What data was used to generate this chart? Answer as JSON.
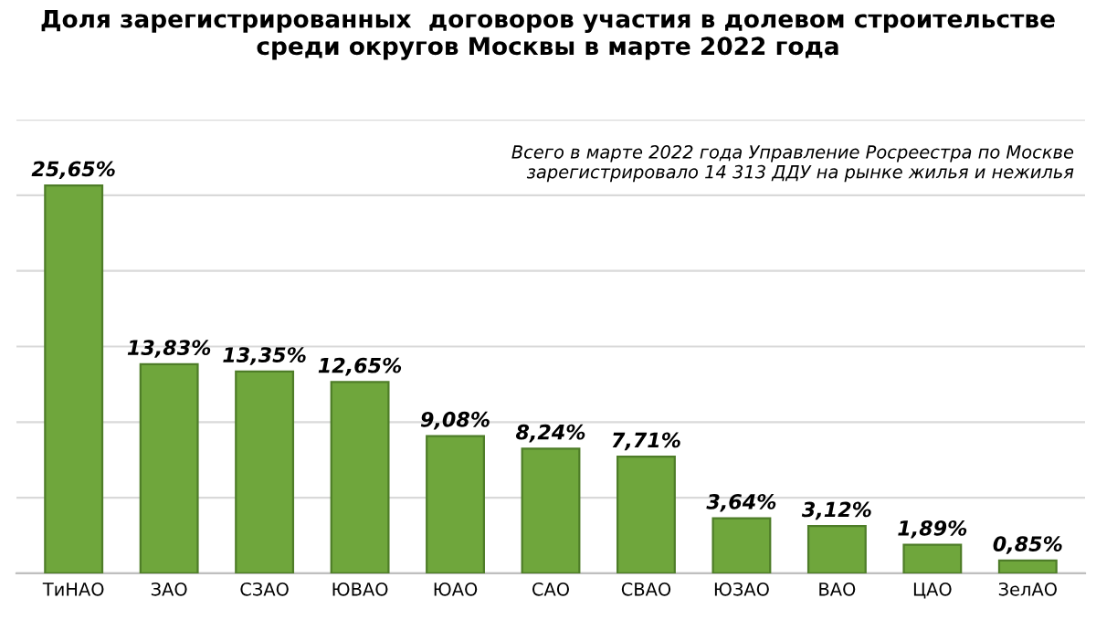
{
  "chart_data": {
    "type": "bar",
    "title": "Доля зарегистрированных  договоров участия в долевом строительстве\nсреди округов Москвы в марте 2022 года",
    "categories": [
      "ТиНАО",
      "ЗАО",
      "СЗАО",
      "ЮВАО",
      "ЮАО",
      "САО",
      "СВАО",
      "ЮЗАО",
      "ВАО",
      "ЦАО",
      "ЗелАО"
    ],
    "values": [
      25.65,
      13.83,
      13.35,
      12.65,
      9.08,
      8.24,
      7.71,
      3.64,
      3.12,
      1.89,
      0.85
    ],
    "value_labels": [
      "25,65%",
      "13,83%",
      "13,35%",
      "12,65%",
      "9,08%",
      "8,24%",
      "7,71%",
      "3,64%",
      "3,12%",
      "1,89%",
      "0,85%"
    ],
    "color": "#6fa63c",
    "ylim": [
      0,
      30
    ],
    "yticks": [
      {
        "value": 0,
        "label": null
      },
      {
        "value": 5,
        "label": null
      },
      {
        "value": 10,
        "label": null
      },
      {
        "value": 15,
        "label": null
      },
      {
        "value": 20,
        "label": null
      },
      {
        "value": 25,
        "label": null
      },
      {
        "value": 30,
        "label": null
      }
    ],
    "tick_labels": "x",
    "grid": "y",
    "annotations": [
      "Всего в марте 2022 года Управление Росреестра по Москве\nзарегистрировало 14 313 ДДУ на рынке жилья и нежилья"
    ]
  }
}
